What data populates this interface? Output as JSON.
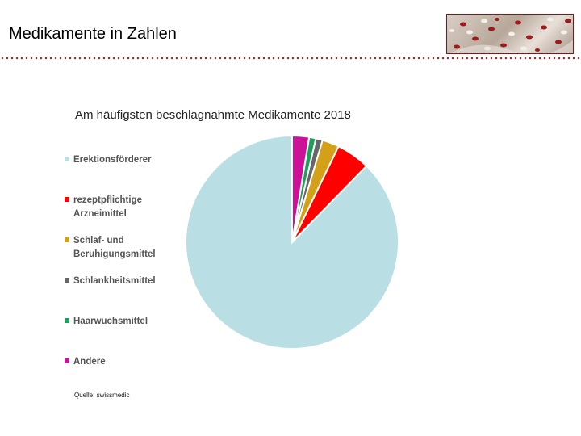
{
  "slide": {
    "title": "Medikamente in Zahlen"
  },
  "source": {
    "text": "Quelle: swissmedic"
  },
  "colors": {
    "accent": "#a52a2a",
    "background": "#ffffff"
  },
  "chart_data": {
    "type": "pie",
    "title": "Am häufigsten beschlagnahmte Medikamente 2018",
    "legend_position": "left",
    "categories": [
      "Erektionsförderer",
      "rezeptpflichtige Arzneimittel",
      "Schlaf- und Beruhigungsmittel",
      "Schlankheitsmittel",
      "Haarwuchsmittel",
      "Andere"
    ],
    "values": [
      85.5,
      5.0,
      2.5,
      1.0,
      1.0,
      2.5
    ],
    "colors": [
      "#b9dfe4",
      "#ff0000",
      "#d4a017",
      "#666666",
      "#1e9e5a",
      "#cc1199"
    ]
  }
}
